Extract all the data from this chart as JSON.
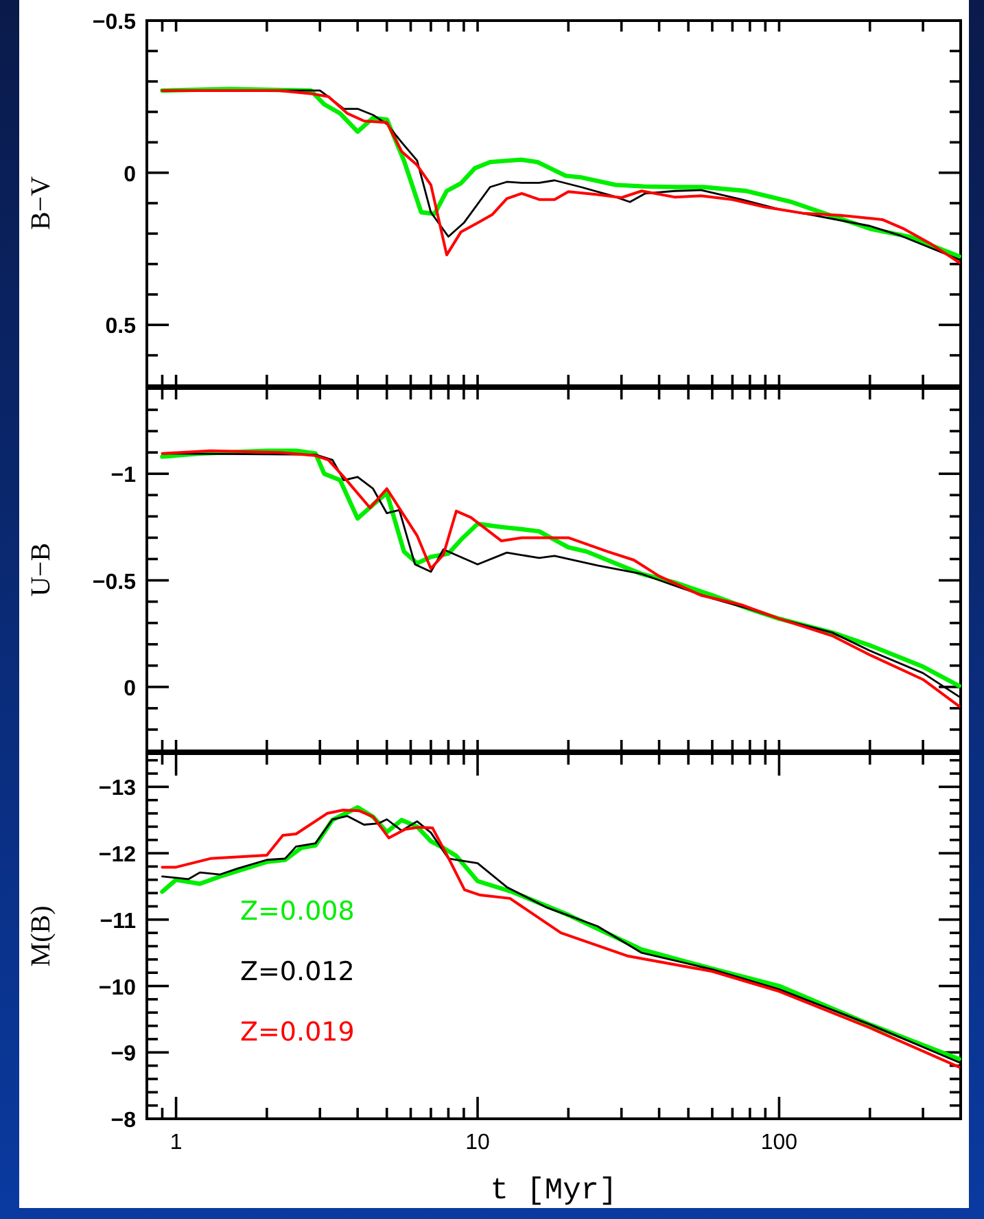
{
  "chart_data": [
    {
      "type": "line",
      "ylabel": "B−V",
      "xlim": [
        0.8,
        400
      ],
      "ylim": [
        0.7,
        -0.5
      ],
      "log": "x",
      "legend": false,
      "tick_labels": "y",
      "grid": false,
      "xticks": [
        {
          "value": 0.9,
          "label": null
        },
        {
          "value": 1,
          "label": null
        },
        {
          "value": 2,
          "label": null
        },
        {
          "value": 3,
          "label": null
        },
        {
          "value": 4,
          "label": null
        },
        {
          "value": 5,
          "label": null
        },
        {
          "value": 6,
          "label": null
        },
        {
          "value": 7,
          "label": null
        },
        {
          "value": 8,
          "label": null
        },
        {
          "value": 9,
          "label": null
        },
        {
          "value": 10,
          "label": null
        },
        {
          "value": 20,
          "label": null
        },
        {
          "value": 30,
          "label": null
        },
        {
          "value": 40,
          "label": null
        },
        {
          "value": 50,
          "label": null
        },
        {
          "value": 60,
          "label": null
        },
        {
          "value": 70,
          "label": null
        },
        {
          "value": 80,
          "label": null
        },
        {
          "value": 90,
          "label": null
        },
        {
          "value": 100,
          "label": null
        },
        {
          "value": 200,
          "label": null
        },
        {
          "value": 300,
          "label": null
        }
      ],
      "yticks": [
        -0.5,
        {
          "value": -0.4,
          "label": null
        },
        {
          "value": -0.3,
          "label": null
        },
        {
          "value": -0.2,
          "label": null
        },
        {
          "value": -0.1,
          "label": null
        },
        0,
        {
          "value": 0.1,
          "label": null
        },
        {
          "value": 0.2,
          "label": null
        },
        {
          "value": 0.3,
          "label": null
        },
        {
          "value": 0.4,
          "label": null
        },
        0.5,
        {
          "value": 0.6,
          "label": null
        }
      ],
      "series": [
        {
          "color": "#00ee00",
          "x": [
            0.9,
            1.5,
            2.8,
            3.1,
            3.5,
            4,
            4.5,
            5,
            5.7,
            6.5,
            7.2,
            7.9,
            8.8,
            9.8,
            11,
            13.9,
            15.8,
            19.6,
            22,
            28.7,
            35.6,
            46,
            56,
            78,
            109,
            138,
            202,
            270,
            395
          ],
          "values": [
            -0.27,
            -0.275,
            -0.27,
            -0.225,
            -0.195,
            -0.135,
            -0.18,
            -0.175,
            -0.04,
            0.13,
            0.135,
            0.06,
            0.035,
            -0.015,
            -0.035,
            -0.043,
            -0.035,
            0.01,
            0.015,
            0.04,
            0.045,
            0.047,
            0.047,
            0.06,
            0.095,
            0.13,
            0.185,
            0.21,
            0.275
          ]
        },
        {
          "color": "#000000",
          "x": [
            0.9,
            3.0,
            3.2,
            3.6,
            4,
            4.5,
            5,
            5.6,
            6.3,
            7,
            8,
            9,
            11,
            12.5,
            14,
            16,
            18,
            22,
            28,
            32,
            36,
            45,
            55,
            75,
            100,
            130,
            200,
            250,
            395
          ],
          "values": [
            -0.27,
            -0.27,
            -0.25,
            -0.21,
            -0.21,
            -0.19,
            -0.16,
            -0.1,
            -0.04,
            0.13,
            0.21,
            0.165,
            0.047,
            0.03,
            0.033,
            0.033,
            0.025,
            0.047,
            0.076,
            0.096,
            0.068,
            0.06,
            0.057,
            0.088,
            0.12,
            0.14,
            0.175,
            0.205,
            0.285
          ]
        },
        {
          "color": "#ff0000",
          "x": [
            0.9,
            2.2,
            2.8,
            3.2,
            3.7,
            4.2,
            5,
            5.6,
            6.3,
            7,
            7.9,
            8.8,
            10,
            11.2,
            12.5,
            14,
            16,
            18,
            20,
            25,
            30,
            35,
            45,
            55,
            70,
            90,
            120,
            160,
            220,
            260,
            320,
            395
          ],
          "values": [
            -0.27,
            -0.27,
            -0.26,
            -0.25,
            -0.195,
            -0.17,
            -0.165,
            -0.07,
            -0.025,
            0.04,
            0.27,
            0.195,
            0.165,
            0.137,
            0.085,
            0.068,
            0.088,
            0.088,
            0.062,
            0.072,
            0.082,
            0.06,
            0.08,
            0.076,
            0.088,
            0.113,
            0.133,
            0.14,
            0.154,
            0.185,
            0.235,
            0.295
          ]
        }
      ]
    },
    {
      "type": "line",
      "ylabel": "U−B",
      "xlim": [
        0.8,
        400
      ],
      "ylim": [
        0.3,
        -1.4
      ],
      "log": "x",
      "legend": false,
      "tick_labels": "y",
      "grid": false,
      "xticks": [
        {
          "value": 0.9,
          "label": null
        },
        {
          "value": 1,
          "label": null
        },
        {
          "value": 2,
          "label": null
        },
        {
          "value": 3,
          "label": null
        },
        {
          "value": 4,
          "label": null
        },
        {
          "value": 5,
          "label": null
        },
        {
          "value": 6,
          "label": null
        },
        {
          "value": 7,
          "label": null
        },
        {
          "value": 8,
          "label": null
        },
        {
          "value": 9,
          "label": null
        },
        {
          "value": 10,
          "label": null
        },
        {
          "value": 20,
          "label": null
        },
        {
          "value": 30,
          "label": null
        },
        {
          "value": 40,
          "label": null
        },
        {
          "value": 50,
          "label": null
        },
        {
          "value": 60,
          "label": null
        },
        {
          "value": 70,
          "label": null
        },
        {
          "value": 80,
          "label": null
        },
        {
          "value": 90,
          "label": null
        },
        {
          "value": 100,
          "label": null
        },
        {
          "value": 200,
          "label": null
        },
        {
          "value": 300,
          "label": null
        }
      ],
      "yticks": [
        {
          "value": -1.3,
          "label": null
        },
        {
          "value": -1.2,
          "label": null
        },
        {
          "value": -1.1,
          "label": null
        },
        -1,
        {
          "value": -0.9,
          "label": null
        },
        {
          "value": -0.8,
          "label": null
        },
        {
          "value": -0.7,
          "label": null
        },
        {
          "value": -0.6,
          "label": null
        },
        -0.5,
        {
          "value": -0.4,
          "label": null
        },
        {
          "value": -0.3,
          "label": null
        },
        {
          "value": -0.2,
          "label": null
        },
        {
          "value": -0.1,
          "label": null
        },
        0,
        {
          "value": 0.1,
          "label": null
        },
        {
          "value": 0.2,
          "label": null
        }
      ],
      "series": [
        {
          "color": "#00ee00",
          "x": [
            0.9,
            1.2,
            2,
            2.5,
            2.9,
            3.1,
            3.5,
            4,
            4.5,
            5,
            5.7,
            6.3,
            7,
            8,
            8.8,
            10,
            12,
            14,
            16,
            18,
            20,
            23,
            35,
            45,
            60,
            80,
            100,
            150,
            200,
            300,
            395
          ],
          "values": [
            -1.08,
            -1.095,
            -1.108,
            -1.108,
            -1.095,
            -1.0,
            -0.97,
            -0.79,
            -0.855,
            -0.91,
            -0.635,
            -0.58,
            -0.61,
            -0.625,
            -0.69,
            -0.765,
            -0.75,
            -0.74,
            -0.73,
            -0.69,
            -0.655,
            -0.635,
            -0.53,
            -0.49,
            -0.43,
            -0.365,
            -0.32,
            -0.255,
            -0.195,
            -0.095,
            -0.005
          ]
        },
        {
          "color": "#000000",
          "x": [
            0.9,
            2.9,
            3.3,
            3.6,
            4,
            4.5,
            5,
            5.5,
            6.2,
            7,
            7.7,
            10,
            12.5,
            16,
            18,
            25,
            35,
            45,
            60,
            80,
            100,
            150,
            200,
            300,
            395
          ],
          "values": [
            -1.095,
            -1.09,
            -1.065,
            -0.97,
            -0.985,
            -0.93,
            -0.815,
            -0.83,
            -0.575,
            -0.54,
            -0.645,
            -0.575,
            -0.63,
            -0.605,
            -0.615,
            -0.57,
            -0.53,
            -0.475,
            -0.415,
            -0.365,
            -0.32,
            -0.255,
            -0.17,
            -0.065,
            0.045
          ]
        },
        {
          "color": "#ff0000",
          "x": [
            0.9,
            1.3,
            2.2,
            2.9,
            3.2,
            3.6,
            4.4,
            5,
            5.7,
            6.3,
            7,
            7.7,
            8.5,
            9.5,
            12,
            14,
            17,
            20,
            27,
            33,
            40,
            55,
            75,
            100,
            150,
            200,
            300,
            395
          ],
          "values": [
            -1.095,
            -1.108,
            -1.1,
            -1.085,
            -1.065,
            -0.985,
            -0.84,
            -0.93,
            -0.805,
            -0.71,
            -0.555,
            -0.62,
            -0.825,
            -0.795,
            -0.685,
            -0.7,
            -0.7,
            -0.7,
            -0.635,
            -0.595,
            -0.52,
            -0.43,
            -0.385,
            -0.32,
            -0.24,
            -0.15,
            -0.035,
            0.09
          ]
        }
      ]
    },
    {
      "type": "line",
      "ylabel": "M(B)",
      "xlabel": "t  [Myr]",
      "xlim": [
        0.8,
        400
      ],
      "ylim": [
        -8,
        -13.5
      ],
      "log": "x",
      "legend": "bottom left",
      "grid": false,
      "xticks": [
        {
          "value": 0.9,
          "label": null
        },
        1,
        {
          "value": 2,
          "label": null
        },
        {
          "value": 3,
          "label": null
        },
        {
          "value": 4,
          "label": null
        },
        {
          "value": 5,
          "label": null
        },
        {
          "value": 6,
          "label": null
        },
        {
          "value": 7,
          "label": null
        },
        {
          "value": 8,
          "label": null
        },
        {
          "value": 9,
          "label": null
        },
        10,
        {
          "value": 20,
          "label": null
        },
        {
          "value": 30,
          "label": null
        },
        {
          "value": 40,
          "label": null
        },
        {
          "value": 50,
          "label": null
        },
        {
          "value": 60,
          "label": null
        },
        {
          "value": 70,
          "label": null
        },
        {
          "value": 80,
          "label": null
        },
        {
          "value": 90,
          "label": null
        },
        100,
        {
          "value": 200,
          "label": null
        },
        {
          "value": 300,
          "label": null
        }
      ],
      "yticks": [
        {
          "value": -13.4,
          "label": null
        },
        {
          "value": -13.2,
          "label": null
        },
        -13,
        {
          "value": -12.8,
          "label": null
        },
        {
          "value": -12.6,
          "label": null
        },
        {
          "value": -12.4,
          "label": null
        },
        {
          "value": -12.2,
          "label": null
        },
        -12,
        {
          "value": -11.8,
          "label": null
        },
        {
          "value": -11.6,
          "label": null
        },
        {
          "value": -11.4,
          "label": null
        },
        {
          "value": -11.2,
          "label": null
        },
        -11,
        {
          "value": -10.8,
          "label": null
        },
        {
          "value": -10.6,
          "label": null
        },
        {
          "value": -10.4,
          "label": null
        },
        {
          "value": -10.2,
          "label": null
        },
        -10,
        {
          "value": -9.8,
          "label": null
        },
        {
          "value": -9.6,
          "label": null
        },
        {
          "value": -9.4,
          "label": null
        },
        {
          "value": -9.2,
          "label": null
        },
        -9,
        {
          "value": -8.8,
          "label": null
        },
        {
          "value": -8.6,
          "label": null
        },
        {
          "value": -8.4,
          "label": null
        },
        {
          "value": -8.2,
          "label": null
        },
        -8
      ],
      "series": [
        {
          "name": "Z=0.008",
          "color": "#00ee00",
          "x": [
            0.9,
            1.0,
            1.2,
            1.4,
            2,
            2.3,
            2.6,
            2.9,
            3.3,
            4,
            4.5,
            5,
            5.6,
            6.3,
            7,
            7.7,
            8.5,
            10,
            13,
            20,
            35,
            60,
            100,
            200,
            395
          ],
          "values": [
            -11.42,
            -11.6,
            -11.54,
            -11.65,
            -11.87,
            -11.9,
            -12.08,
            -12.12,
            -12.5,
            -12.69,
            -12.55,
            -12.32,
            -12.5,
            -12.4,
            -12.18,
            -12.08,
            -11.96,
            -11.58,
            -11.42,
            -11.07,
            -10.55,
            -10.26,
            -10.0,
            -9.42,
            -8.9
          ]
        },
        {
          "name": "Z=0.012",
          "color": "#000000",
          "x": [
            0.9,
            1.1,
            1.2,
            1.4,
            1.6,
            2,
            2.3,
            2.5,
            2.9,
            3.3,
            3.7,
            4.2,
            4.7,
            5,
            5.6,
            6.3,
            7,
            8,
            10,
            12.5,
            17,
            25,
            35,
            60,
            100,
            200,
            395
          ],
          "values": [
            -11.65,
            -11.61,
            -11.71,
            -11.68,
            -11.77,
            -11.9,
            -11.92,
            -12.1,
            -12.15,
            -12.51,
            -12.56,
            -12.43,
            -12.45,
            -12.51,
            -12.34,
            -12.48,
            -12.31,
            -11.92,
            -11.85,
            -11.49,
            -11.18,
            -10.9,
            -10.5,
            -10.25,
            -9.95,
            -9.42,
            -8.85
          ]
        },
        {
          "name": "Z=0.019",
          "color": "#ff0000",
          "x": [
            0.9,
            1.0,
            1.3,
            2.0,
            2.26,
            2.5,
            3.17,
            3.58,
            4.04,
            4.5,
            5.08,
            5.75,
            6.38,
            7.09,
            7.96,
            9.05,
            10.2,
            12.8,
            18.9,
            31.6,
            60,
            100,
            200,
            395
          ],
          "values": [
            -11.79,
            -11.79,
            -11.92,
            -11.97,
            -12.27,
            -12.29,
            -12.6,
            -12.65,
            -12.64,
            -12.55,
            -12.23,
            -12.36,
            -12.39,
            -12.38,
            -11.95,
            -11.45,
            -11.37,
            -11.32,
            -10.8,
            -10.45,
            -10.22,
            -9.92,
            -9.37,
            -8.78
          ]
        }
      ]
    }
  ]
}
